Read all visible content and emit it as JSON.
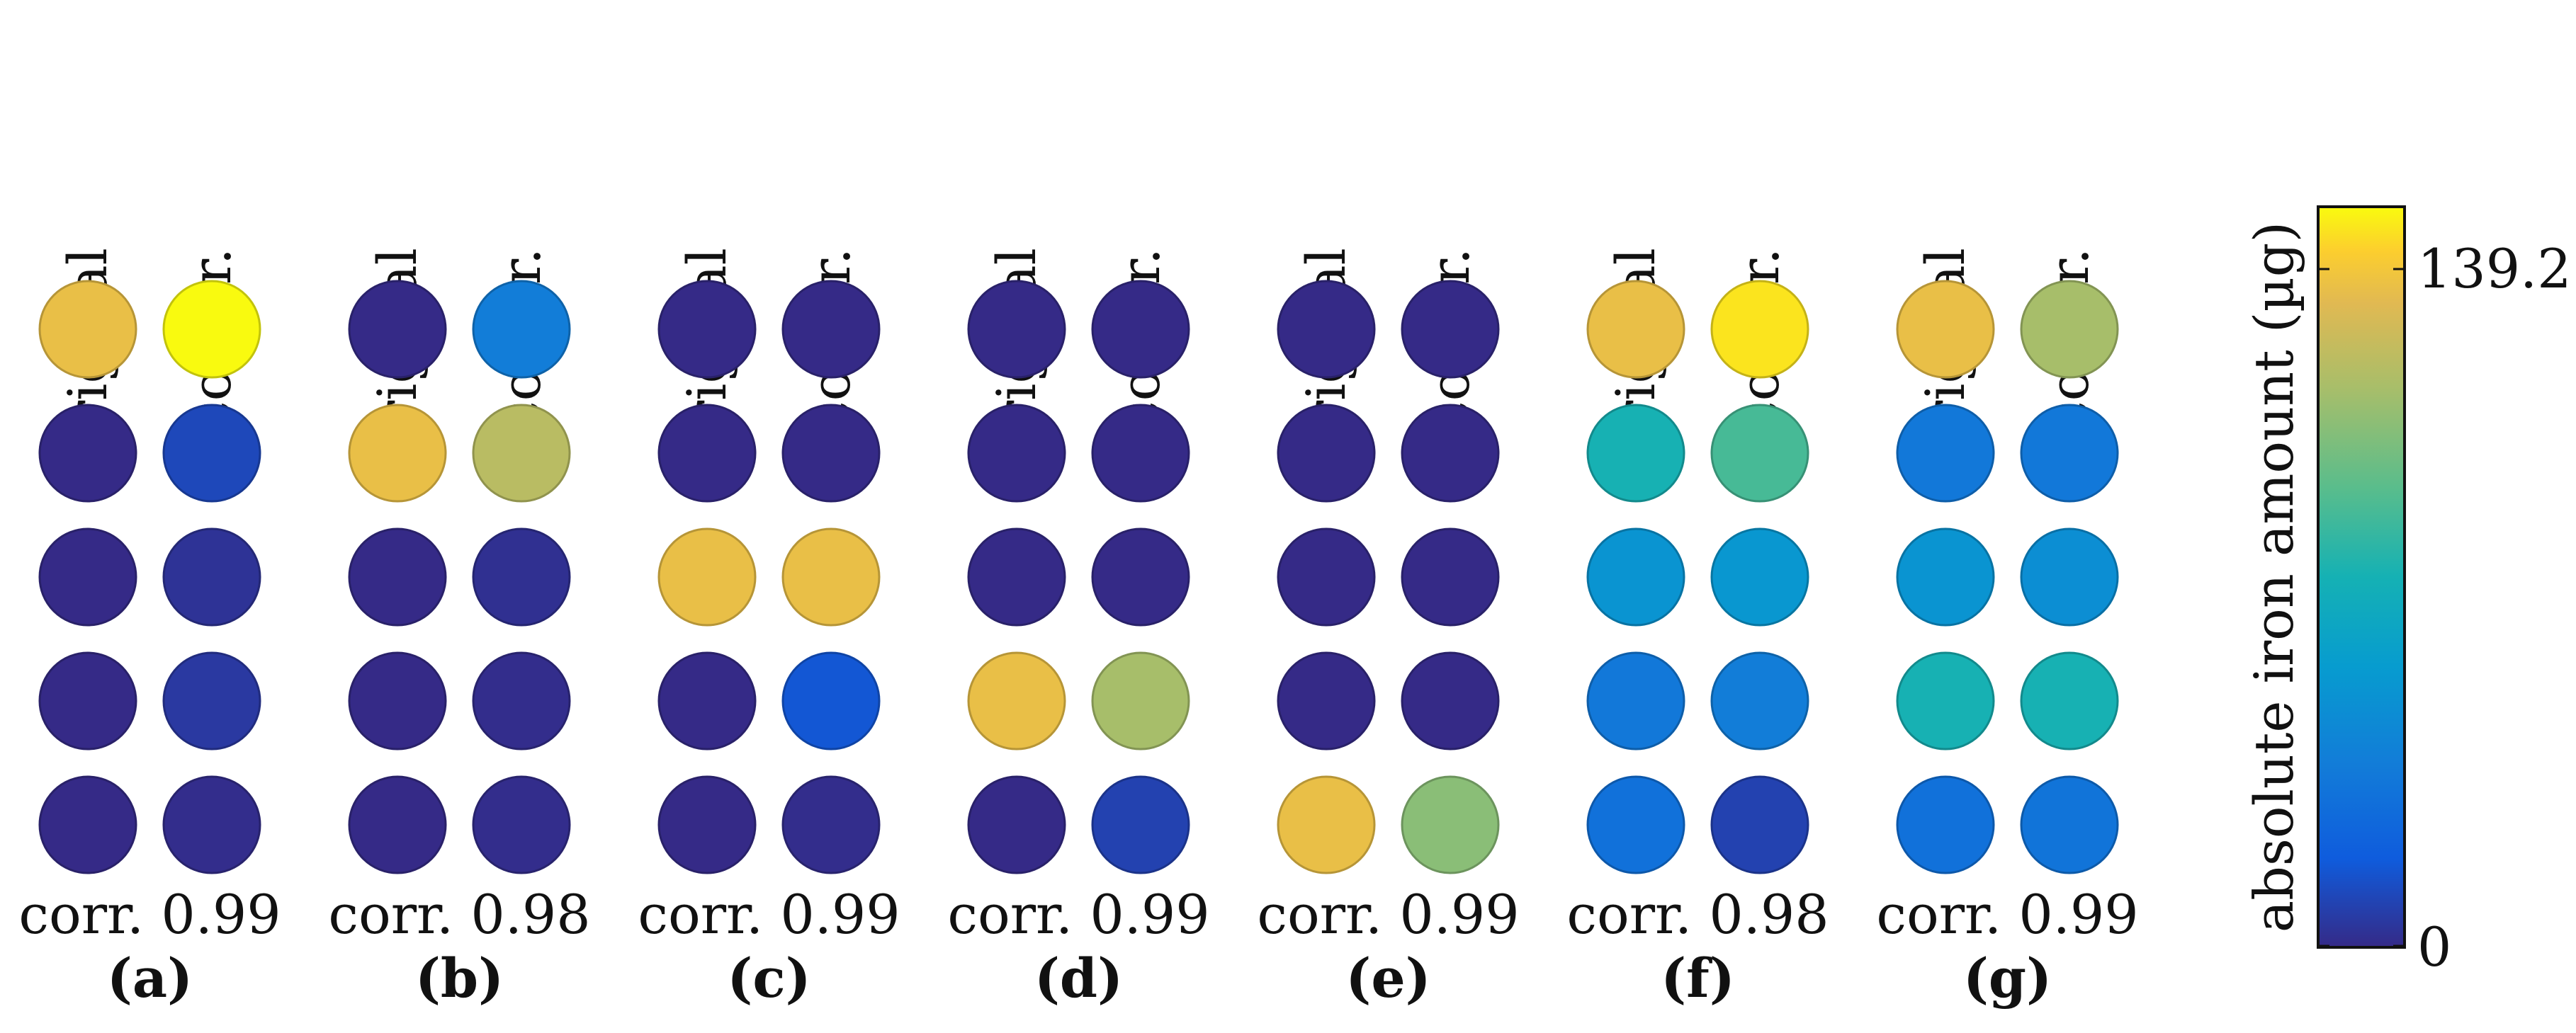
{
  "chart_data": {
    "type": "heatmap",
    "title": "",
    "column_labels": [
      "original",
      "reconstr."
    ],
    "panels": [
      {
        "label": "(a)",
        "corr_text": "corr. 0.99",
        "original": [
          124,
          0,
          0,
          0,
          0
        ],
        "reconstr": [
          139,
          10,
          3,
          5,
          1
        ]
      },
      {
        "label": "(b)",
        "corr_text": "corr. 0.98",
        "original": [
          0,
          124,
          0,
          0,
          0
        ],
        "reconstr": [
          35,
          110,
          2,
          1,
          1
        ]
      },
      {
        "label": "(c)",
        "corr_text": "corr. 0.99",
        "original": [
          0,
          0,
          124,
          0,
          0
        ],
        "reconstr": [
          0,
          0,
          124,
          15,
          1
        ]
      },
      {
        "label": "(d)",
        "corr_text": "corr. 0.99",
        "original": [
          0,
          0,
          0,
          124,
          0
        ],
        "reconstr": [
          0,
          0,
          0,
          105,
          8
        ]
      },
      {
        "label": "(e)",
        "corr_text": "corr. 0.99",
        "original": [
          0,
          0,
          0,
          0,
          124
        ],
        "reconstr": [
          0,
          0,
          0,
          0,
          98
        ]
      },
      {
        "label": "(f)",
        "corr_text": "corr. 0.98",
        "original": [
          124,
          70,
          48,
          32,
          28
        ],
        "reconstr": [
          135,
          82,
          50,
          35,
          8
        ]
      },
      {
        "label": "(g)",
        "corr_text": "corr. 0.99",
        "original": [
          124,
          32,
          48,
          70,
          28
        ],
        "reconstr": [
          105,
          32,
          45,
          70,
          30
        ]
      }
    ],
    "colorbar": {
      "label": "absolute iron amount (µg)",
      "min": 0,
      "max": 139.2,
      "tick_labels": [
        "0",
        "139.2"
      ],
      "colormap": "parula"
    }
  }
}
